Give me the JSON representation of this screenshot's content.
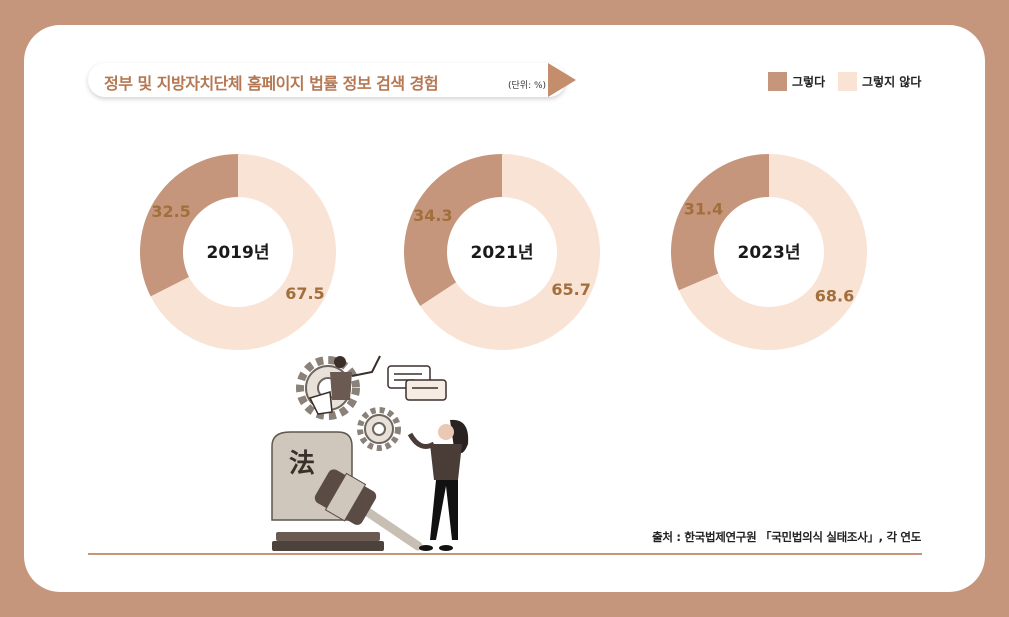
{
  "header": {
    "title": "정부 및 지방자치단체 홈페이지 법률 정보 검색 경험",
    "unit": "(단위: %)"
  },
  "legend": {
    "items": [
      {
        "label": "그렇다",
        "color": "#c5967c"
      },
      {
        "label": "그렇지 않다",
        "color": "#f9e3d5"
      }
    ]
  },
  "colors": {
    "yes": "#c5967c",
    "no": "#f9e3d5"
  },
  "chart_data": {
    "type": "pie",
    "title": "정부 및 지방자치단체 홈페이지 법률 정보 검색 경험",
    "unit": "%",
    "legend_position": "top-right",
    "categories": [
      "그렇다",
      "그렇지 않다"
    ],
    "series": [
      {
        "name": "2019년",
        "values": [
          32.5,
          67.5
        ]
      },
      {
        "name": "2021년",
        "values": [
          34.3,
          65.7
        ]
      },
      {
        "name": "2023년",
        "values": [
          31.4,
          68.6
        ]
      }
    ]
  },
  "illustration": {
    "stone_character": "法"
  },
  "footer": {
    "source": "출처 : 한국법제연구원 「국민법의식 실태조사」, 각 연도"
  }
}
